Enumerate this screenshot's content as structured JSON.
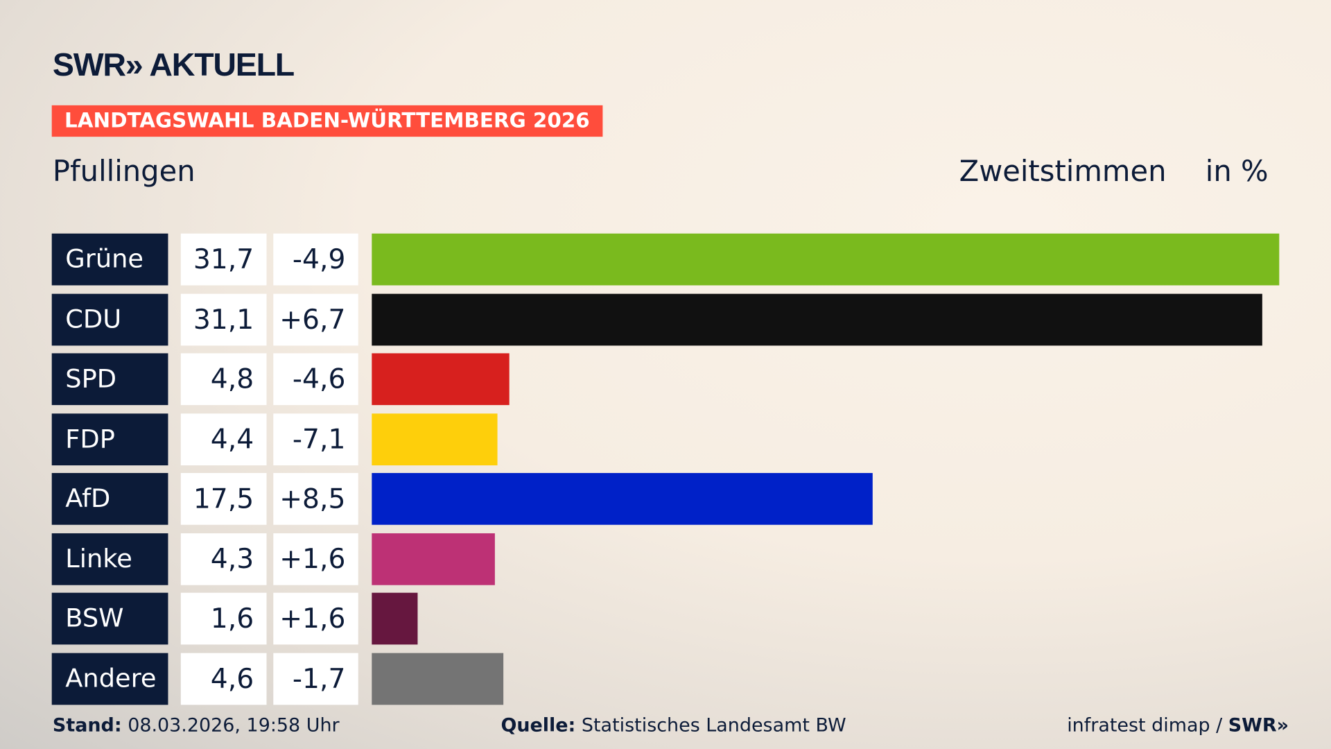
{
  "logo": "SWR» AKTUELL",
  "banner": "LANDTAGSWAHL BADEN-WÜRTTEMBERG 2026",
  "location": "Pfullingen",
  "measure": "Zweitstimmen",
  "unit": "in %",
  "footer": {
    "stand_label": "Stand:",
    "stand_value": "08.03.2026, 19:58 Uhr",
    "source_label": "Quelle:",
    "source_value": "Statistisches Landesamt BW",
    "credit": "infratest dimap / ",
    "credit_logo": "SWR»"
  },
  "chart_data": {
    "type": "bar",
    "orientation": "horizontal",
    "categories": [
      "Grüne",
      "CDU",
      "SPD",
      "FDP",
      "AfD",
      "Linke",
      "BSW",
      "Andere"
    ],
    "values": [
      31.7,
      31.1,
      4.8,
      4.4,
      17.5,
      4.3,
      1.6,
      4.6
    ],
    "value_labels": [
      "31,7",
      "31,1",
      "4,8",
      "4,4",
      "17,5",
      "4,3",
      "1,6",
      "4,6"
    ],
    "changes": [
      -4.9,
      6.7,
      -4.6,
      -7.1,
      8.5,
      1.6,
      1.6,
      -1.7
    ],
    "change_labels": [
      "-4,9",
      "+6,7",
      "-4,6",
      "-7,1",
      "+8,5",
      "+1,6",
      "+1,6",
      "-1,7"
    ],
    "colors": [
      "#7aba1e",
      "#111111",
      "#d7201e",
      "#fecf0b",
      "#0021c8",
      "#bd3175",
      "#66173f",
      "#747474"
    ],
    "xlim": [
      0,
      31.7
    ]
  }
}
